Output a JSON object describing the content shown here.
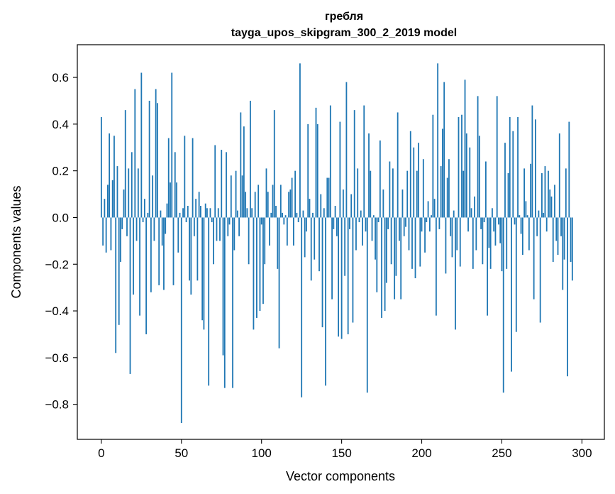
{
  "chart_data": {
    "type": "bar",
    "title": [
      "гребля",
      "tayga_upos_skipgram_300_2_2019 model"
    ],
    "xlabel": "Vector components",
    "ylabel": "Components values",
    "xlim": [
      -15,
      314
    ],
    "ylim": [
      -0.95,
      0.74
    ],
    "xticks": [
      0,
      50,
      100,
      150,
      200,
      250,
      300
    ],
    "yticks": [
      -0.8,
      -0.6,
      -0.4,
      -0.2,
      0.0,
      0.2,
      0.4,
      0.6
    ],
    "xtick_labels": [
      "0",
      "50",
      "100",
      "150",
      "200",
      "250",
      "300"
    ],
    "ytick_labels": [
      "−0.8",
      "−0.6",
      "−0.4",
      "−0.2",
      "0.0",
      "0.2",
      "0.4",
      "0.6"
    ],
    "bar_color": "#1f77b4",
    "values": [
      0.43,
      -0.12,
      0.08,
      -0.15,
      0.14,
      0.36,
      -0.14,
      0.16,
      0.35,
      -0.58,
      0.22,
      -0.46,
      -0.19,
      -0.05,
      0.12,
      0.46,
      -0.08,
      0.21,
      -0.67,
      0.28,
      -0.33,
      0.55,
      -0.1,
      0.21,
      -0.42,
      0.62,
      -0.02,
      0.08,
      -0.5,
      0.02,
      0.5,
      -0.32,
      0.18,
      -0.1,
      0.55,
      0.49,
      -0.29,
      0.03,
      -0.12,
      -0.31,
      -0.07,
      0.06,
      0.34,
      0.15,
      0.62,
      -0.29,
      0.28,
      0.15,
      -0.15,
      0.02,
      -0.88,
      0.04,
      0.35,
      -0.02,
      0.05,
      -0.27,
      -0.33,
      0.34,
      -0.08,
      0.08,
      -0.27,
      0.11,
      0.05,
      -0.44,
      -0.48,
      0.06,
      0.04,
      -0.72,
      0.04,
      -0.02,
      -0.2,
      0.31,
      -0.1,
      0.04,
      -0.1,
      0.29,
      -0.59,
      -0.73,
      0.28,
      -0.08,
      -0.03,
      0.18,
      -0.73,
      -0.14,
      0.2,
      0.03,
      -0.08,
      0.45,
      0.18,
      0.39,
      0.11,
      0.04,
      -0.2,
      0.5,
      0.04,
      -0.48,
      0.11,
      -0.43,
      0.14,
      -0.4,
      -0.03,
      -0.37,
      -0.2,
      0.21,
      0.11,
      -0.12,
      0.02,
      0.14,
      0.46,
      0.05,
      -0.22,
      -0.56,
      0.14,
      0.02,
      -0.03,
      0.01,
      -0.12,
      0.11,
      0.12,
      0.17,
      -0.12,
      0.2,
      0.02,
      -0.02,
      0.66,
      -0.77,
      0.03,
      -0.17,
      -0.06,
      0.4,
      0.08,
      -0.27,
      0.02,
      -0.18,
      0.47,
      0.4,
      -0.23,
      0.1,
      -0.47,
      0.04,
      -0.72,
      0.17,
      0.17,
      0.48,
      -0.35,
      -0.05,
      0.05,
      -0.08,
      -0.51,
      0.41,
      -0.52,
      0.12,
      -0.25,
      0.58,
      -0.5,
      -0.05,
      0.1,
      -0.45,
      0.46,
      -0.14,
      0.21,
      -0.02,
      0.03,
      -0.12,
      0.48,
      -0.06,
      -0.75,
      0.36,
      0.2,
      -0.1,
      0.01,
      -0.18,
      -0.32,
      -0.02,
      0.33,
      -0.43,
      0.12,
      -0.4,
      -0.28,
      -0.05,
      0.24,
      -0.2,
      0.21,
      -0.35,
      -0.25,
      0.45,
      -0.1,
      -0.35,
      0.12,
      -0.08,
      -0.04,
      0.2,
      -0.14,
      0.37,
      -0.22,
      0.3,
      -0.26,
      0.2,
      0.32,
      -0.21,
      -0.06,
      0.25,
      -0.15,
      -0.02,
      0.07,
      -0.06,
      0.01,
      0.44,
      0.08,
      -0.42,
      0.66,
      -0.05,
      0.22,
      0.38,
      0.58,
      -0.24,
      0.17,
      0.25,
      -0.08,
      -0.17,
      0.03,
      -0.48,
      -0.14,
      0.43,
      -0.21,
      0.44,
      0.2,
      0.59,
      0.36,
      -0.06,
      0.3,
      0.04,
      -0.22,
      0.09,
      -0.14,
      0.52,
      0.35,
      -0.05,
      -0.2,
      -0.02,
      0.24,
      -0.42,
      -0.13,
      -0.22,
      0.04,
      -0.06,
      -0.12,
      0.52,
      -0.03,
      -0.11,
      -0.23,
      -0.75,
      0.32,
      -0.22,
      0.19,
      0.43,
      -0.66,
      0.37,
      -0.03,
      -0.49,
      0.43,
      0.01,
      -0.07,
      -0.16,
      0.21,
      0.07,
      0.01,
      -0.14,
      0.23,
      0.48,
      -0.35,
      0.42,
      -0.08,
      0.03,
      -0.45,
      0.19,
      0.02,
      0.22,
      -0.06,
      0.2,
      0.12,
      0.09,
      -0.19,
      0.14,
      -0.1,
      -0.16,
      0.36,
      -0.08,
      -0.31,
      -0.18,
      0.21,
      -0.68,
      0.41,
      -0.19,
      -0.27
    ]
  }
}
